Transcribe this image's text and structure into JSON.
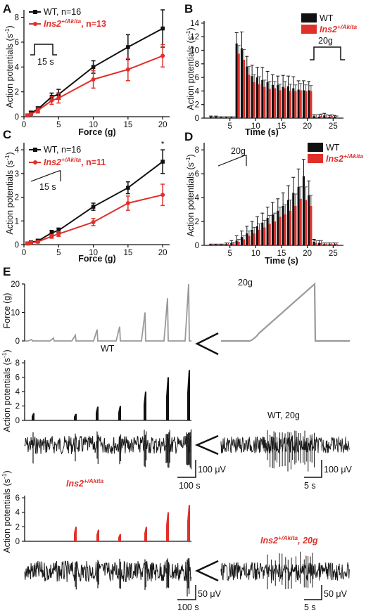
{
  "colors": {
    "wt": "#111111",
    "akita": "#e0302b",
    "force": "#9a9a9a",
    "trace": "#1a1a1a"
  },
  "panels": {
    "A": {
      "label": "A",
      "legend": {
        "wt": "WT, n=16",
        "akita_gene": "Ins2",
        "akita_sup": "+/Akita",
        "akita_rest": ", n=13"
      },
      "ramp_label": "15 s",
      "xlabel": "Force (g)",
      "ylabel": "Action potentials (s",
      "ylabel_sup": "-1",
      "ylabel_end": ")"
    },
    "B": {
      "label": "B",
      "legend": {
        "wt": "WT",
        "akita_gene": "Ins2",
        "akita_sup": "+/Akita"
      },
      "step_label": "20g",
      "xlabel": "Time (s)",
      "ylabel": "Action potentials (s",
      "ylabel_sup": "-1",
      "ylabel_end": ")"
    },
    "C": {
      "label": "C",
      "legend": {
        "wt": "WT, n=16",
        "akita_gene": "Ins2",
        "akita_sup": "+/Akita",
        "akita_rest": ", n=11"
      },
      "ramp_label": "15 s",
      "xlabel": "Force (g)",
      "ylabel": "Action potentials (s",
      "ylabel_sup": "-1",
      "ylabel_end": ")",
      "significance": "*"
    },
    "D": {
      "label": "D",
      "legend": {
        "wt": "WT",
        "akita_gene": "Ins2",
        "akita_sup": "+/Akita"
      },
      "ramp_label": "20g",
      "xlabel": "Time (s)",
      "ylabel": "Action potentials (s",
      "ylabel_sup": "-1",
      "ylabel_end": ")"
    },
    "E": {
      "label": "E",
      "force_ylabel": "Force (g)",
      "force_yticks": [
        "0",
        "10",
        "20"
      ],
      "force_peak_label": "20g",
      "wt_label": "WT",
      "ap_ylabel": "Action potentials (s",
      "ap_ylabel_sup": "-1",
      "ap_ylabel_end": ")",
      "wt_yticks": [
        "0",
        "2",
        "4",
        "6",
        "8"
      ],
      "akita_yticks": [
        "0",
        "2",
        "4",
        "6"
      ],
      "akita_gene": "Ins2",
      "akita_sup": "+/Akita",
      "zoom_wt_label": "WT, 20g",
      "zoom_akita_gene": "Ins2",
      "zoom_akita_sup": "+/Akita",
      "zoom_akita_rest": ", 20g",
      "scale_wt_v": "100 μV",
      "scale_wt_t": "100 s",
      "scale_wt_zoom_v": "100 μV",
      "scale_wt_zoom_t": "5 s",
      "scale_ak_v": "50 μV",
      "scale_ak_t": "100 s",
      "scale_ak_zoom_v": "50 μV",
      "scale_ak_zoom_t": "5 s"
    }
  },
  "chart_data": [
    {
      "panel": "A",
      "type": "line",
      "x": [
        0.5,
        1,
        2,
        4,
        5,
        10,
        15,
        20
      ],
      "xticks": [
        0,
        5,
        10,
        15,
        20
      ],
      "xlim": [
        0,
        21
      ],
      "yticks": [
        0,
        2,
        4,
        6,
        8
      ],
      "ylim": [
        0,
        8.6
      ],
      "series": [
        {
          "name": "WT, n=16",
          "values": [
            0.1,
            0.3,
            0.6,
            1.6,
            1.8,
            4.0,
            5.6,
            7.1
          ],
          "errors": [
            0.1,
            0.15,
            0.2,
            0.3,
            0.4,
            0.5,
            1.0,
            1.5
          ]
        },
        {
          "name": "Ins2+/Akita, n=13",
          "values": [
            0.1,
            0.2,
            0.5,
            1.3,
            1.5,
            3.0,
            3.8,
            4.9
          ],
          "errors": [
            0.1,
            0.1,
            0.2,
            0.3,
            0.4,
            0.7,
            0.9,
            0.9
          ]
        }
      ]
    },
    {
      "panel": "B",
      "type": "bar",
      "x": [
        1.5,
        2.5,
        3.5,
        4.5,
        5.5,
        6.5,
        7.5,
        8.5,
        9.5,
        10.5,
        11.5,
        12.5,
        13.5,
        14.5,
        15.5,
        16.5,
        17.5,
        18.5,
        19.5,
        20.5,
        21.5,
        22.5,
        23.5,
        24.5,
        25.5
      ],
      "xticks": [
        5,
        10,
        15,
        20,
        25
      ],
      "xlim": [
        0,
        27
      ],
      "yticks": [
        0,
        2,
        4,
        6,
        8,
        10,
        12,
        14
      ],
      "ylim": [
        0,
        14.3
      ],
      "series": [
        {
          "name": "WT",
          "values": [
            0.2,
            0.2,
            0.1,
            0.1,
            0.1,
            11.0,
            10.3,
            7.6,
            6.2,
            6.0,
            5.6,
            5.3,
            4.9,
            4.9,
            4.6,
            4.7,
            4.4,
            4.2,
            4.1,
            4.1,
            0.3,
            0.2,
            0.4,
            0.2,
            0.2
          ],
          "errors": [
            0.1,
            0.1,
            0.1,
            0.1,
            0.1,
            1.6,
            2.4,
            1.5,
            1.6,
            1.5,
            1.9,
            1.6,
            1.5,
            1.3,
            1.7,
            1.5,
            1.7,
            1.3,
            1.4,
            1.3,
            0.2,
            0.3,
            0.3,
            0.2,
            0.2
          ]
        },
        {
          "name": "Ins2+/Akita",
          "values": [
            0.1,
            0.1,
            0.1,
            0.1,
            0.1,
            9.5,
            8.6,
            6.4,
            5.3,
            5.0,
            4.6,
            4.3,
            4.4,
            4.1,
            4.4,
            4.0,
            4.0,
            4.1,
            4.0,
            4.0,
            0.2,
            0.3,
            0.2,
            0.3,
            0.1
          ],
          "errors": [
            0.1,
            0.1,
            0.1,
            0.1,
            0.1,
            1.2,
            1.5,
            1.2,
            1.1,
            1.1,
            1.0,
            1.1,
            1.0,
            0.9,
            1.0,
            1.0,
            0.9,
            1.0,
            0.9,
            0.8,
            0.3,
            0.3,
            0.3,
            0.2,
            0.2
          ]
        }
      ]
    },
    {
      "panel": "C",
      "type": "line",
      "x": [
        0.5,
        1,
        2,
        4,
        5,
        10,
        15,
        20
      ],
      "xticks": [
        0,
        5,
        10,
        15,
        20
      ],
      "xlim": [
        0,
        21
      ],
      "yticks": [
        0,
        1,
        2,
        3,
        4
      ],
      "ylim": [
        0,
        4.3
      ],
      "series": [
        {
          "name": "WT, n=16",
          "values": [
            0.05,
            0.1,
            0.15,
            0.5,
            0.6,
            1.6,
            2.4,
            3.5
          ],
          "errors": [
            0.05,
            0.05,
            0.08,
            0.1,
            0.1,
            0.15,
            0.25,
            0.5
          ]
        },
        {
          "name": "Ins2+/Akita, n=11",
          "values": [
            0.05,
            0.08,
            0.12,
            0.35,
            0.45,
            0.95,
            1.75,
            2.1
          ],
          "errors": [
            0.05,
            0.05,
            0.05,
            0.08,
            0.1,
            0.15,
            0.3,
            0.45
          ]
        }
      ]
    },
    {
      "panel": "D",
      "type": "bar",
      "x": [
        1.5,
        2.5,
        3.5,
        4.5,
        5.5,
        6.5,
        7.5,
        8.5,
        9.5,
        10.5,
        11.5,
        12.5,
        13.5,
        14.5,
        15.5,
        16.5,
        17.5,
        18.5,
        19.5,
        20.5,
        21.5,
        22.5,
        23.5,
        24.5,
        25.5
      ],
      "xticks": [
        5,
        10,
        15,
        20,
        25
      ],
      "xlim": [
        0,
        27
      ],
      "yticks": [
        0,
        2,
        4,
        6,
        8
      ],
      "ylim": [
        0,
        8.6
      ],
      "series": [
        {
          "name": "WT",
          "values": [
            0.05,
            0.05,
            0.05,
            0.1,
            0.2,
            0.4,
            0.7,
            1.0,
            1.3,
            1.6,
            1.9,
            2.3,
            2.6,
            2.9,
            3.3,
            3.8,
            4.4,
            4.9,
            5.8,
            4.2,
            0.3,
            0.2,
            0.1,
            0.1,
            0.1
          ],
          "errors": [
            0.05,
            0.05,
            0.05,
            0.1,
            0.2,
            0.4,
            0.5,
            0.6,
            0.7,
            0.8,
            0.8,
            0.9,
            1.0,
            1.0,
            1.1,
            1.2,
            1.3,
            1.5,
            1.4,
            1.2,
            0.2,
            0.2,
            0.1,
            0.1,
            0.1
          ]
        },
        {
          "name": "Ins2+/Akita",
          "values": [
            0.05,
            0.05,
            0.05,
            0.1,
            0.15,
            0.3,
            0.5,
            0.8,
            1.0,
            1.3,
            1.5,
            1.8,
            2.0,
            2.4,
            2.6,
            2.9,
            3.3,
            3.9,
            3.8,
            3.3,
            0.2,
            0.2,
            0.1,
            0.1,
            0.1
          ],
          "errors": [
            0.05,
            0.05,
            0.05,
            0.1,
            0.1,
            0.2,
            0.3,
            0.4,
            0.5,
            0.5,
            0.6,
            0.7,
            0.7,
            0.8,
            0.8,
            0.9,
            1.0,
            1.0,
            1.1,
            0.9,
            0.2,
            0.2,
            0.1,
            0.1,
            0.1
          ]
        }
      ]
    },
    {
      "panel": "E-wt",
      "type": "bar",
      "series": [
        {
          "name": "WT",
          "values": [
            1.0,
            0.9,
            1.9,
            2.0,
            4.0,
            6.0,
            7.0
          ]
        }
      ],
      "ylim": [
        0,
        8.4
      ]
    },
    {
      "panel": "E-akita",
      "type": "bar",
      "series": [
        {
          "name": "Ins2+/Akita",
          "values": [
            2.0,
            1.6,
            1.0,
            2.0,
            4.0,
            5.0
          ]
        }
      ],
      "ylim": [
        0,
        6.3
      ]
    }
  ]
}
